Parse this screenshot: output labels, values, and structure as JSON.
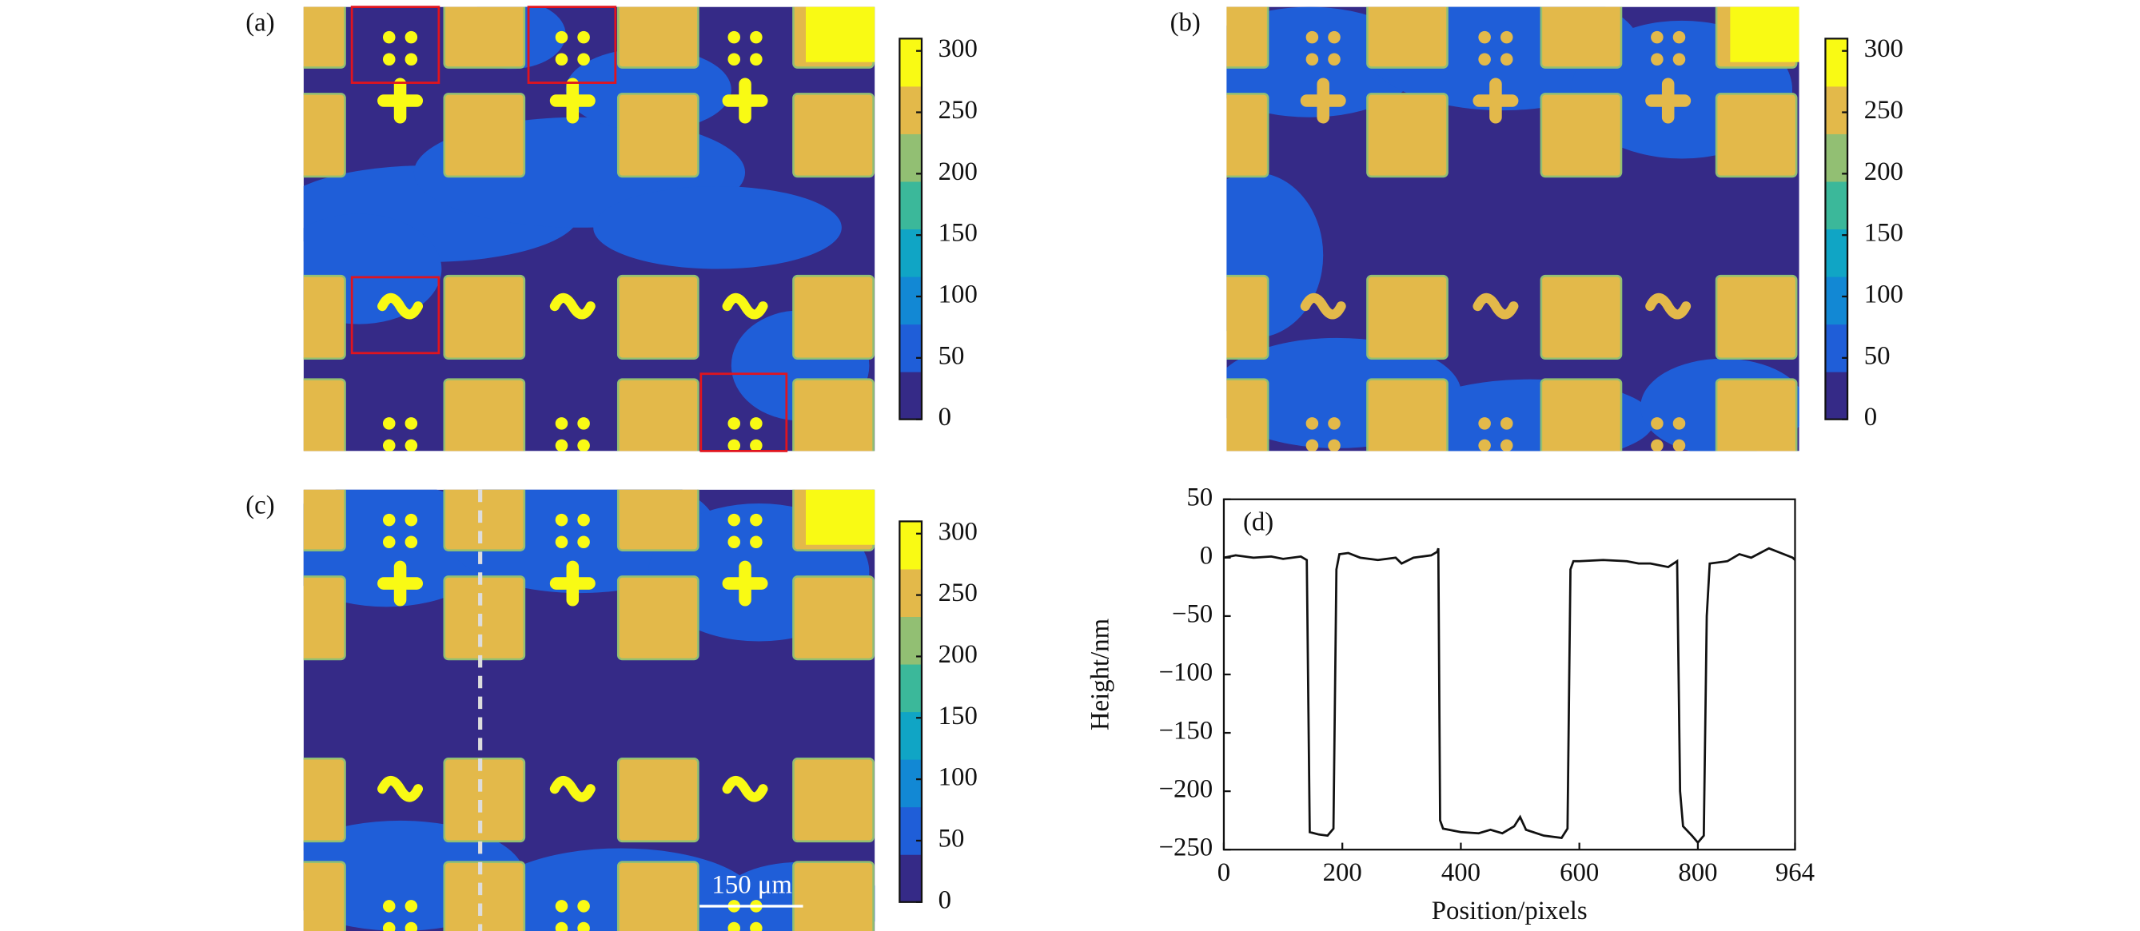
{
  "chart_data": [
    {
      "type": "heatmap",
      "label": "(a)",
      "clim": [
        0,
        310
      ],
      "cticks": [
        0,
        50,
        100,
        150,
        200,
        250,
        300
      ],
      "colors": [
        "#352a87",
        "#1f5ed8",
        "#1288d4",
        "#10a5c5",
        "#3bb89a",
        "#92bf73",
        "#e3b94a",
        "#f9fa14"
      ]
    },
    {
      "type": "heatmap",
      "label": "(b)",
      "clim": [
        0,
        310
      ],
      "cticks": [
        0,
        50,
        100,
        150,
        200,
        250,
        300
      ],
      "colors": [
        "#352a87",
        "#1f5ed8",
        "#1288d4",
        "#10a5c5",
        "#3bb89a",
        "#92bf73",
        "#e3b94a",
        "#f9fa14"
      ]
    },
    {
      "type": "heatmap",
      "label": "(c)",
      "clim": [
        0,
        310
      ],
      "cticks": [
        0,
        50,
        100,
        150,
        200,
        250,
        300
      ],
      "colors": [
        "#352a87",
        "#1f5ed8",
        "#1288d4",
        "#10a5c5",
        "#3bb89a",
        "#92bf73",
        "#e3b94a",
        "#f9fa14"
      ],
      "scale_bar": "150 μm"
    },
    {
      "type": "line",
      "label": "(d)",
      "x_label": "Position/pixels",
      "y_label": "Height/nm",
      "xlim": [
        0,
        964
      ],
      "ylim": [
        -250,
        50
      ],
      "xticks": [
        0,
        200,
        400,
        600,
        800,
        964
      ],
      "yticks": [
        50,
        0,
        {
          "value": -50,
          "label": "−50"
        },
        {
          "value": -100,
          "label": "−100"
        },
        {
          "value": -150,
          "label": "−150"
        },
        {
          "value": -200,
          "label": "−200"
        },
        {
          "value": -250,
          "label": "−250"
        }
      ],
      "series": [
        {
          "color": "#111111",
          "x": [
            0,
            20,
            50,
            80,
            100,
            130,
            140,
            145,
            160,
            175,
            185,
            190,
            195,
            210,
            230,
            260,
            290,
            300,
            320,
            350,
            360,
            362,
            365,
            370,
            400,
            430,
            450,
            470,
            490,
            500,
            510,
            540,
            570,
            580,
            585,
            590,
            600,
            640,
            680,
            700,
            720,
            750,
            765,
            770,
            775,
            790,
            800,
            810,
            815,
            820,
            850,
            870,
            890,
            920,
            940,
            960,
            964
          ],
          "values": [
            0,
            2,
            0,
            1,
            -1,
            1,
            -2,
            -235,
            -237,
            -238,
            -232,
            -10,
            3,
            4,
            0,
            -2,
            0,
            -5,
            0,
            2,
            5,
            8,
            -225,
            -232,
            -235,
            -236,
            -233,
            -236,
            -230,
            -222,
            -233,
            -238,
            -240,
            -232,
            -10,
            -3,
            -3,
            -2,
            -3,
            -5,
            -5,
            -8,
            -3,
            -200,
            -230,
            -238,
            -244,
            -238,
            -50,
            -5,
            -3,
            3,
            0,
            8,
            4,
            0,
            -2
          ]
        }
      ]
    }
  ]
}
